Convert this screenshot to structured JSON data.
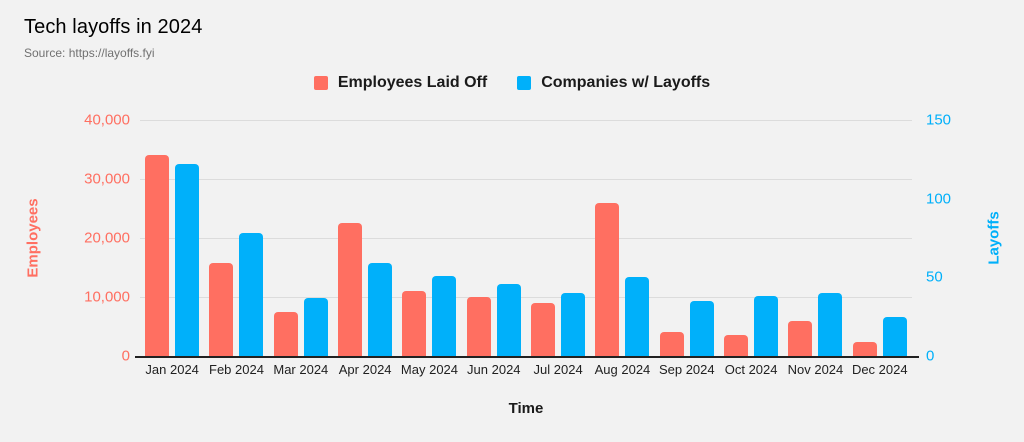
{
  "chart_data": {
    "type": "bar",
    "title": "Tech layoffs in 2024",
    "source": "Source: https://layoffs.fyi",
    "xlabel": "Time",
    "categories": [
      "Jan 2024",
      "Feb 2024",
      "Mar 2024",
      "Apr 2024",
      "May 2024",
      "Jun 2024",
      "Jul 2024",
      "Aug 2024",
      "Sep 2024",
      "Oct 2024",
      "Nov 2024",
      "Dec 2024"
    ],
    "series": [
      {
        "name": "Employees Laid Off",
        "axis": "left",
        "color": "#ff6f61",
        "values": [
          34000,
          15700,
          7400,
          22500,
          11000,
          10000,
          9000,
          26000,
          4000,
          3500,
          6000,
          2400
        ]
      },
      {
        "name": "Companies w/ Layoffs",
        "axis": "right",
        "color": "#00b0fa",
        "values": [
          122,
          78,
          37,
          59,
          51,
          46,
          40,
          50,
          35,
          38,
          40,
          25
        ]
      }
    ],
    "left_axis": {
      "label": "Employees",
      "ticks": [
        "40,000",
        "30,000",
        "20,000",
        "10,000",
        "0"
      ],
      "min": 0,
      "max": 40000
    },
    "right_axis": {
      "label": "Layoffs",
      "ticks": [
        "150",
        "100",
        "50",
        "0"
      ],
      "min": 0,
      "max": 150
    },
    "grid": true,
    "legend_position": "top-center",
    "colors": {
      "background": "#f2f2f2",
      "gridline": "#dcdcdc",
      "axis_line": "#212121",
      "title": "#000000",
      "source_text": "#717171",
      "x_tick_text": "#1f1f1f"
    }
  }
}
